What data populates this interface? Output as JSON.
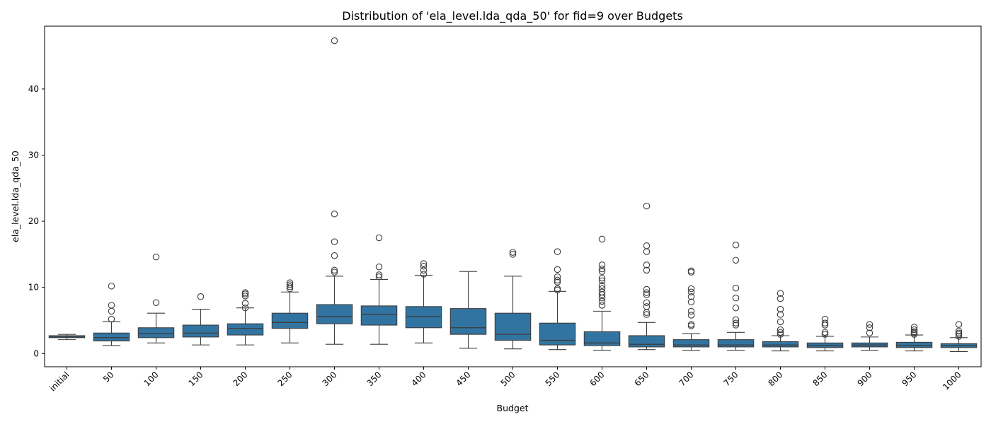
{
  "colors": {
    "box_fill": "#3274a1",
    "line": "#3d3d3d",
    "frame": "#000000"
  },
  "chart_data": {
    "type": "box",
    "title": "Distribution of 'ela_level.lda_qda_50' for fid=9 over Budgets",
    "xlabel": "Budget",
    "ylabel": "ela_level.lda_qda_50",
    "ylim": [
      -2,
      49.5
    ],
    "yticks": [
      0,
      10,
      20,
      30,
      40
    ],
    "xtick_rotation": -45,
    "grid": false,
    "legend": "none",
    "categories": [
      "initial",
      "50",
      "100",
      "150",
      "200",
      "250",
      "300",
      "350",
      "400",
      "450",
      "500",
      "550",
      "600",
      "650",
      "700",
      "750",
      "800",
      "850",
      "900",
      "950",
      "1000"
    ],
    "boxes": [
      {
        "whislo": 2.1,
        "q1": 2.4,
        "med": 2.5,
        "q3": 2.7,
        "whishi": 2.9,
        "fliers": []
      },
      {
        "whislo": 1.2,
        "q1": 1.9,
        "med": 2.4,
        "q3": 3.1,
        "whishi": 4.8,
        "fliers": [
          5.2,
          6.4,
          7.3,
          10.2
        ]
      },
      {
        "whislo": 1.6,
        "q1": 2.4,
        "med": 3.0,
        "q3": 3.9,
        "whishi": 6.1,
        "fliers": [
          7.7,
          14.6
        ]
      },
      {
        "whislo": 1.3,
        "q1": 2.5,
        "med": 3.1,
        "q3": 4.3,
        "whishi": 6.7,
        "fliers": [
          8.6
        ]
      },
      {
        "whislo": 1.3,
        "q1": 2.8,
        "med": 3.8,
        "q3": 4.5,
        "whishi": 6.9,
        "fliers": [
          6.9,
          7.6,
          8.7,
          9.0,
          9.2
        ]
      },
      {
        "whislo": 1.6,
        "q1": 3.8,
        "med": 4.7,
        "q3": 6.1,
        "whishi": 9.3,
        "fliers": [
          9.8,
          10.1,
          10.4,
          10.7
        ]
      },
      {
        "whislo": 1.4,
        "q1": 4.5,
        "med": 5.6,
        "q3": 7.4,
        "whishi": 11.7,
        "fliers": [
          12.3,
          12.6,
          14.8,
          16.9,
          21.1,
          47.3
        ]
      },
      {
        "whislo": 1.4,
        "q1": 4.3,
        "med": 5.9,
        "q3": 7.2,
        "whishi": 11.2,
        "fliers": [
          11.6,
          11.9,
          13.1,
          17.5
        ]
      },
      {
        "whislo": 1.6,
        "q1": 3.9,
        "med": 5.6,
        "q3": 7.1,
        "whishi": 11.8,
        "fliers": [
          12.0,
          12.6,
          13.2,
          13.6
        ]
      },
      {
        "whislo": 0.8,
        "q1": 2.9,
        "med": 3.9,
        "q3": 6.8,
        "whishi": 12.4,
        "fliers": []
      },
      {
        "whislo": 0.7,
        "q1": 2.0,
        "med": 2.9,
        "q3": 6.1,
        "whishi": 11.7,
        "fliers": [
          15.0,
          15.3
        ]
      },
      {
        "whislo": 0.6,
        "q1": 1.3,
        "med": 2.0,
        "q3": 4.6,
        "whishi": 9.4,
        "fliers": [
          9.6,
          9.8,
          10.8,
          11.1,
          11.6,
          12.7,
          15.4
        ]
      },
      {
        "whislo": 0.5,
        "q1": 1.2,
        "med": 1.6,
        "q3": 3.3,
        "whishi": 6.4,
        "fliers": [
          7.3,
          7.9,
          8.4,
          8.9,
          9.3,
          9.8,
          10.3,
          11.0,
          11.4,
          12.4,
          12.8,
          13.4,
          17.3
        ]
      },
      {
        "whislo": 0.6,
        "q1": 1.0,
        "med": 1.4,
        "q3": 2.7,
        "whishi": 4.7,
        "fliers": [
          5.9,
          6.2,
          7.1,
          7.7,
          8.9,
          9.2,
          9.7,
          12.6,
          13.4,
          15.4,
          16.3,
          22.3
        ]
      },
      {
        "whislo": 0.5,
        "q1": 1.0,
        "med": 1.3,
        "q3": 2.1,
        "whishi": 3.0,
        "fliers": [
          4.2,
          4.4,
          5.8,
          6.4,
          7.8,
          8.6,
          9.3,
          9.8,
          12.3,
          12.5
        ]
      },
      {
        "whislo": 0.5,
        "q1": 1.0,
        "med": 1.3,
        "q3": 2.1,
        "whishi": 3.2,
        "fliers": [
          4.3,
          4.6,
          5.1,
          6.9,
          8.4,
          9.9,
          14.1,
          16.4
        ]
      },
      {
        "whislo": 0.4,
        "q1": 1.0,
        "med": 1.3,
        "q3": 1.8,
        "whishi": 2.7,
        "fliers": [
          2.9,
          3.2,
          3.6,
          4.8,
          5.9,
          6.7,
          8.3,
          9.1
        ]
      },
      {
        "whislo": 0.4,
        "q1": 0.9,
        "med": 1.2,
        "q3": 1.6,
        "whishi": 2.6,
        "fliers": [
          2.9,
          3.2,
          4.3,
          4.6,
          5.2
        ]
      },
      {
        "whislo": 0.5,
        "q1": 1.0,
        "med": 1.3,
        "q3": 1.6,
        "whishi": 2.5,
        "fliers": [
          3.1,
          3.9,
          4.4
        ]
      },
      {
        "whislo": 0.4,
        "q1": 0.9,
        "med": 1.2,
        "q3": 1.7,
        "whishi": 2.8,
        "fliers": [
          2.9,
          3.1,
          3.3,
          3.6,
          4.0
        ]
      },
      {
        "whislo": 0.3,
        "q1": 0.9,
        "med": 1.2,
        "q3": 1.5,
        "whishi": 2.4,
        "fliers": [
          2.6,
          2.9,
          3.1,
          3.4,
          4.4
        ]
      }
    ]
  }
}
